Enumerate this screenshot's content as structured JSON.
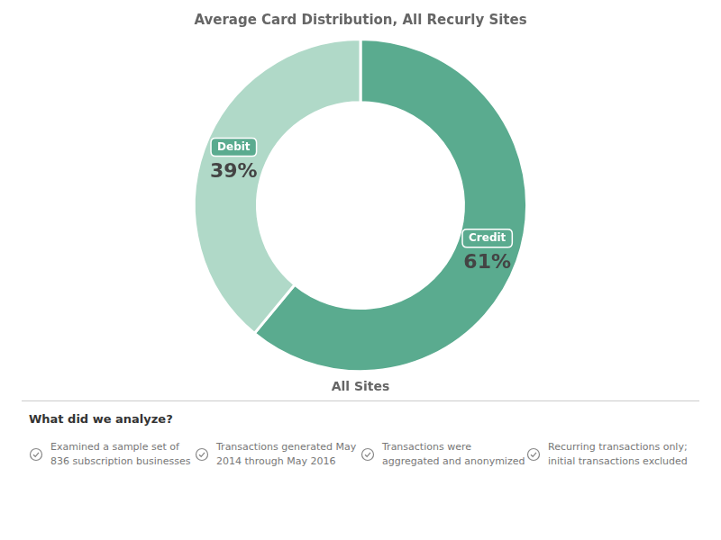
{
  "chart_data": {
    "type": "doughnut",
    "title": "Average Card Distribution, All Recurly Sites",
    "subtitle": "All Sites",
    "categories": [
      "Credit",
      "Debit"
    ],
    "values": [
      61,
      39
    ],
    "value_labels": [
      "61%",
      "39%"
    ],
    "colors": [
      "#5aab8f",
      "#b0d9c8"
    ],
    "data_labels": true,
    "annotations": {
      "title": "What did we analyze?",
      "lines": [
        [
          "Examined a sample set of",
          "836 subscription businesses"
        ],
        [
          "Transactions generated May",
          "2014 through May 2016"
        ],
        [
          "Transactions were",
          "aggregated and anonymized"
        ],
        [
          "Recurring transactions only;",
          "initial transactions excluded"
        ]
      ]
    }
  }
}
